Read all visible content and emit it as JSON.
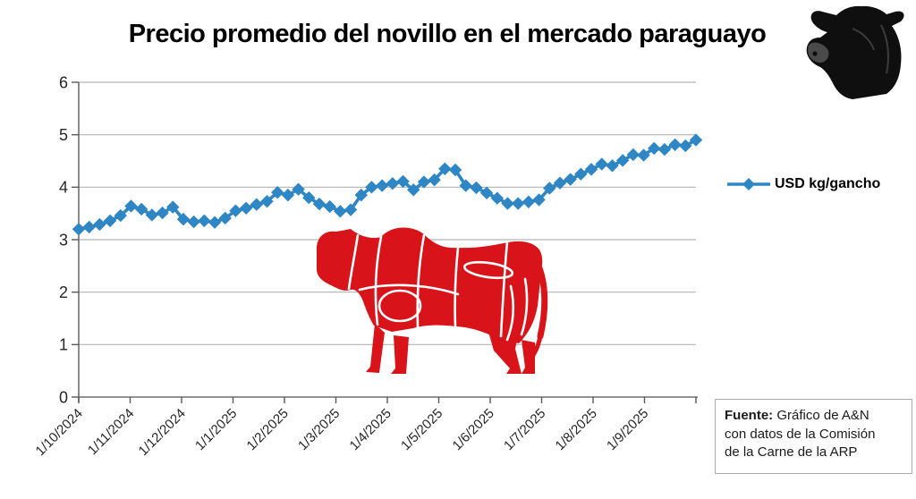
{
  "title": "Precio promedio del novillo en el mercado paraguayo",
  "legend": {
    "label": "USD kg/gancho"
  },
  "source": {
    "label_bold": "Fuente:",
    "line1_rest": " Gráfico de A&N",
    "line2": "con datos de la Comisión",
    "line3": "de la Carne de la ARP"
  },
  "icons": {
    "top_right": "cow-head-icon",
    "plot_center": "bull-butcher-cuts-icon",
    "legend_marker": "diamond-line-marker-icon"
  },
  "colors": {
    "line_blue": "#2e86c4",
    "bull_red": "#d8141a",
    "grid_gray": "#b3b3b3",
    "axis_gray": "#6e6e6e",
    "tick_gray": "#595959",
    "text_dark": "#262626",
    "box_border": "#ababab"
  },
  "chart_data": {
    "type": "line",
    "title": "Precio promedio del novillo en el mercado paraguayo",
    "xlabel": "",
    "ylabel": "",
    "ylim": [
      0,
      6
    ],
    "y_ticks": [
      0,
      1,
      2,
      3,
      4,
      5,
      6
    ],
    "grid": "horizontal",
    "legend_position": "right",
    "x_tick_labels": [
      "1/10/2024",
      "1/11/2024",
      "1/12/2024",
      "1/1/2025",
      "1/2/2025",
      "1/3/2025",
      "1/4/2025",
      "1/5/2025",
      "1/6/2025",
      "1/7/2025",
      "1/8/2025",
      "1/9/2025"
    ],
    "series": [
      {
        "name": "USD kg/gancho",
        "marker": "diamond",
        "color": "#2e86c4",
        "values": [
          3.2,
          3.24,
          3.29,
          3.36,
          3.46,
          3.64,
          3.58,
          3.47,
          3.51,
          3.62,
          3.39,
          3.34,
          3.36,
          3.33,
          3.41,
          3.55,
          3.6,
          3.67,
          3.73,
          3.9,
          3.85,
          3.96,
          3.8,
          3.68,
          3.63,
          3.54,
          3.57,
          3.85,
          4.0,
          4.03,
          4.07,
          4.11,
          3.95,
          4.1,
          4.14,
          4.35,
          4.33,
          4.03,
          3.99,
          3.89,
          3.79,
          3.69,
          3.69,
          3.72,
          3.76,
          3.98,
          4.08,
          4.15,
          4.25,
          4.34,
          4.44,
          4.41,
          4.51,
          4.62,
          4.61,
          4.74,
          4.72,
          4.81,
          4.79,
          4.9
        ]
      }
    ]
  }
}
